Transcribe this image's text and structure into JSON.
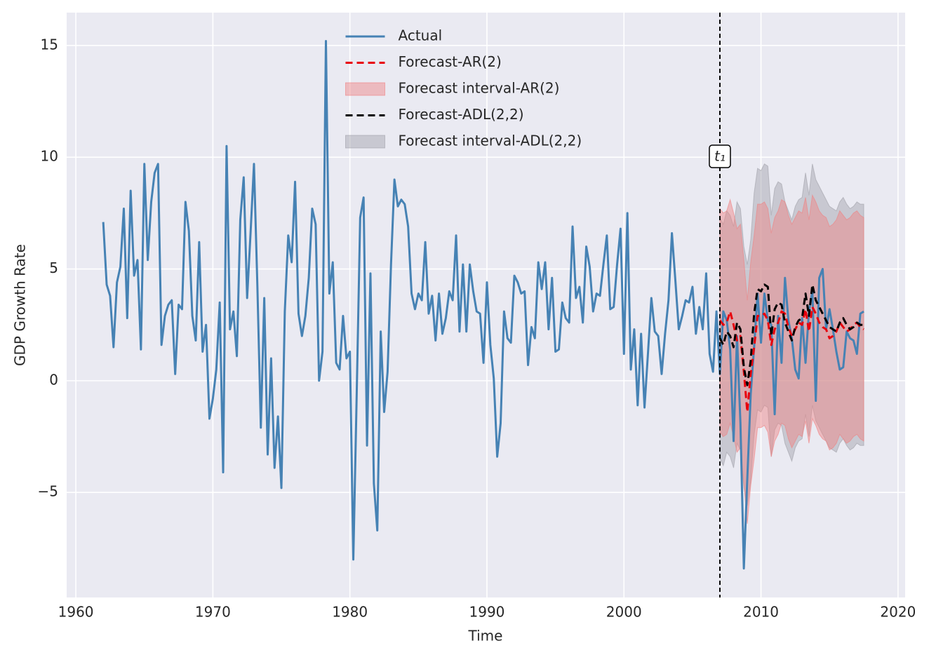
{
  "chart_data": {
    "type": "line",
    "xlabel": "Time",
    "ylabel": "GDP Growth Rate",
    "xlim": [
      1959.33,
      2020.52
    ],
    "ylim": [
      -9.7,
      16.47
    ],
    "xticks": [
      1960,
      1970,
      1980,
      1990,
      2000,
      2010,
      2020
    ],
    "yticks": [
      {
        "value": -5,
        "label": "−5"
      },
      0,
      5,
      10,
      15
    ],
    "grid": true,
    "legend": "upper center",
    "vline": {
      "x": 2007,
      "label": "t₁"
    },
    "series": [
      {
        "name": "Actual",
        "kind": "line",
        "color": "#4682b4",
        "x": [
          1962,
          1962.25,
          1962.5,
          1962.75,
          1963,
          1963.25,
          1963.5,
          1963.75,
          1964,
          1964.25,
          1964.5,
          1964.75,
          1965,
          1965.25,
          1965.5,
          1965.75,
          1966,
          1966.25,
          1966.5,
          1966.75,
          1967,
          1967.25,
          1967.5,
          1967.75,
          1968,
          1968.25,
          1968.5,
          1968.75,
          1969,
          1969.25,
          1969.5,
          1969.75,
          1970,
          1970.25,
          1970.5,
          1970.75,
          1971,
          1971.25,
          1971.5,
          1971.75,
          1972,
          1972.25,
          1972.5,
          1972.75,
          1973,
          1973.25,
          1973.5,
          1973.75,
          1974,
          1974.25,
          1974.5,
          1974.75,
          1975,
          1975.25,
          1975.5,
          1975.75,
          1976,
          1976.25,
          1976.5,
          1976.75,
          1977,
          1977.25,
          1977.5,
          1977.75,
          1978,
          1978.25,
          1978.5,
          1978.75,
          1979,
          1979.25,
          1979.5,
          1979.75,
          1980,
          1980.25,
          1980.5,
          1980.75,
          1981,
          1981.25,
          1981.5,
          1981.75,
          1982,
          1982.25,
          1982.5,
          1982.75,
          1983,
          1983.25,
          1983.5,
          1983.75,
          1984,
          1984.25,
          1984.5,
          1984.75,
          1985,
          1985.25,
          1985.5,
          1985.75,
          1986,
          1986.25,
          1986.5,
          1986.75,
          1987,
          1987.25,
          1987.5,
          1987.75,
          1988,
          1988.25,
          1988.5,
          1988.75,
          1989,
          1989.25,
          1989.5,
          1989.75,
          1990,
          1990.25,
          1990.5,
          1990.75,
          1991,
          1991.25,
          1991.5,
          1991.75,
          1992,
          1992.25,
          1992.5,
          1992.75,
          1993,
          1993.25,
          1993.5,
          1993.75,
          1994,
          1994.25,
          1994.5,
          1994.75,
          1995,
          1995.25,
          1995.5,
          1995.75,
          1996,
          1996.25,
          1996.5,
          1996.75,
          1997,
          1997.25,
          1997.5,
          1997.75,
          1998,
          1998.25,
          1998.5,
          1998.75,
          1999,
          1999.25,
          1999.5,
          1999.75,
          2000,
          2000.25,
          2000.5,
          2000.75,
          2001,
          2001.25,
          2001.5,
          2001.75,
          2002,
          2002.25,
          2002.5,
          2002.75,
          2003,
          2003.25,
          2003.5,
          2003.75,
          2004,
          2004.25,
          2004.5,
          2004.75,
          2005,
          2005.25,
          2005.5,
          2005.75,
          2006,
          2006.25,
          2006.5,
          2006.75,
          2007,
          2007.25,
          2007.5,
          2007.75,
          2008,
          2008.25,
          2008.5,
          2008.75,
          2009,
          2009.25,
          2009.5,
          2009.75,
          2010,
          2010.25,
          2010.5,
          2010.75,
          2011,
          2011.25,
          2011.5,
          2011.75,
          2012,
          2012.25,
          2012.5,
          2012.75,
          2013,
          2013.25,
          2013.5,
          2013.75,
          2014,
          2014.25,
          2014.5,
          2014.75,
          2015,
          2015.25,
          2015.5,
          2015.75,
          2016,
          2016.25,
          2016.5,
          2016.75,
          2017,
          2017.25,
          2017.5
        ],
        "values": [
          7.1,
          4.3,
          3.8,
          1.5,
          4.4,
          5.1,
          7.7,
          2.8,
          8.5,
          4.7,
          5.4,
          1.4,
          9.7,
          5.4,
          8.0,
          9.3,
          9.7,
          1.6,
          2.9,
          3.4,
          3.6,
          0.3,
          3.4,
          3.2,
          8.0,
          6.7,
          2.9,
          1.8,
          6.2,
          1.3,
          2.5,
          -1.7,
          -0.8,
          0.5,
          3.5,
          -4.1,
          10.5,
          2.3,
          3.1,
          1.1,
          7.2,
          9.1,
          3.7,
          6.6,
          9.7,
          4.2,
          -2.1,
          3.7,
          -3.3,
          1.0,
          -3.9,
          -1.6,
          -4.8,
          3.1,
          6.5,
          5.3,
          8.9,
          3.0,
          2.0,
          2.9,
          4.6,
          7.7,
          7.0,
          0.0,
          1.3,
          15.2,
          3.9,
          5.3,
          0.8,
          0.5,
          2.9,
          1.0,
          1.3,
          -8.0,
          -0.5,
          7.3,
          8.2,
          -2.9,
          4.8,
          -4.6,
          -6.7,
          2.2,
          -1.4,
          0.4,
          5.2,
          9.0,
          7.8,
          8.1,
          7.9,
          6.9,
          3.9,
          3.2,
          3.9,
          3.6,
          6.2,
          3.0,
          3.8,
          1.8,
          3.9,
          2.1,
          2.8,
          4.0,
          3.6,
          6.5,
          2.2,
          5.2,
          2.2,
          5.2,
          4.0,
          3.1,
          3.0,
          0.8,
          4.4,
          1.6,
          0.1,
          -3.4,
          -1.9,
          3.1,
          1.9,
          1.7,
          4.7,
          4.4,
          3.9,
          4.0,
          0.7,
          2.4,
          1.9,
          5.3,
          4.1,
          5.3,
          2.3,
          4.6,
          1.3,
          1.4,
          3.5,
          2.8,
          2.6,
          6.9,
          3.7,
          4.2,
          2.6,
          6.0,
          5.1,
          3.1,
          3.9,
          3.8,
          5.2,
          6.5,
          3.2,
          3.3,
          5.2,
          6.8,
          1.2,
          7.5,
          0.5,
          2.3,
          -1.1,
          2.1,
          -1.2,
          1.2,
          3.7,
          2.2,
          2.0,
          0.3,
          2.1,
          3.6,
          6.6,
          4.5,
          2.3,
          2.9,
          3.6,
          3.5,
          4.2,
          2.1,
          3.3,
          2.3,
          4.8,
          1.2,
          0.4,
          3.1,
          0.3,
          3.1,
          2.7,
          1.4,
          -2.7,
          2.0,
          -1.9,
          -8.4,
          -4.4,
          -0.6,
          1.5,
          3.9,
          1.7,
          3.9,
          2.7,
          2.5,
          -1.5,
          2.9,
          0.8,
          4.6,
          2.7,
          1.9,
          0.5,
          0.1,
          2.8,
          0.8,
          3.1,
          4.0,
          -0.9,
          4.6,
          5.0,
          2.3,
          3.2,
          2.3,
          1.3,
          0.5,
          0.6,
          2.2,
          1.9,
          1.8,
          1.2,
          3.0,
          3.1
        ]
      },
      {
        "name": "Forecast-AR(2)",
        "kind": "dashed",
        "color": "#e8000b",
        "x": [
          2007,
          2007.25,
          2007.5,
          2007.75,
          2008,
          2008.25,
          2008.5,
          2008.75,
          2009,
          2009.25,
          2009.5,
          2009.75,
          2010,
          2010.25,
          2010.5,
          2010.75,
          2011,
          2011.25,
          2011.5,
          2011.75,
          2012,
          2012.25,
          2012.5,
          2012.75,
          2013,
          2013.25,
          2013.5,
          2013.75,
          2014,
          2014.25,
          2014.5,
          2014.75,
          2015,
          2015.25,
          2015.5,
          2015.75,
          2016,
          2016.25,
          2016.5,
          2016.75,
          2017,
          2017.25,
          2017.5
        ],
        "values": [
          2.7,
          2.5,
          2.6,
          3.1,
          2.5,
          1.8,
          2.0,
          0.4,
          -1.4,
          0.3,
          1.5,
          2.9,
          2.9,
          3.0,
          2.7,
          1.6,
          2.3,
          2.6,
          3.1,
          3.0,
          2.4,
          2.0,
          2.3,
          2.6,
          2.5,
          3.2,
          2.2,
          3.3,
          3.0,
          2.6,
          2.4,
          2.3,
          1.9,
          2.0,
          2.2,
          2.6,
          2.4,
          2.2,
          2.3,
          2.5,
          2.6,
          2.4,
          2.3
        ]
      },
      {
        "name": "Forecast interval-AR(2)",
        "kind": "band",
        "color": "#f08080",
        "x": [
          2007,
          2007.25,
          2007.5,
          2007.75,
          2008,
          2008.25,
          2008.5,
          2008.75,
          2009,
          2009.25,
          2009.5,
          2009.75,
          2010,
          2010.25,
          2010.5,
          2010.75,
          2011,
          2011.25,
          2011.5,
          2011.75,
          2012,
          2012.25,
          2012.5,
          2012.75,
          2013,
          2013.25,
          2013.5,
          2013.75,
          2014,
          2014.25,
          2014.5,
          2014.75,
          2015,
          2015.25,
          2015.5,
          2015.75,
          2016,
          2016.25,
          2016.5,
          2016.75,
          2017,
          2017.25,
          2017.5
        ],
        "lower": [
          -2.3,
          -2.5,
          -2.4,
          -1.9,
          -2.5,
          -3.2,
          -3.0,
          -4.6,
          -6.4,
          -4.7,
          -3.5,
          -2.1,
          -2.1,
          -2.0,
          -2.3,
          -3.4,
          -2.7,
          -2.4,
          -1.9,
          -2.0,
          -2.6,
          -3.0,
          -2.7,
          -2.4,
          -2.5,
          -1.8,
          -2.8,
          -1.7,
          -2.0,
          -2.4,
          -2.6,
          -2.7,
          -3.1,
          -3.0,
          -2.8,
          -2.4,
          -2.6,
          -2.8,
          -2.7,
          -2.5,
          -2.4,
          -2.6,
          -2.7
        ],
        "upper": [
          7.7,
          7.5,
          7.6,
          8.1,
          7.5,
          6.8,
          7.0,
          5.4,
          3.6,
          5.3,
          6.5,
          7.9,
          7.9,
          8.0,
          7.7,
          6.6,
          7.3,
          7.6,
          8.1,
          8.0,
          7.4,
          7.0,
          7.3,
          7.6,
          7.5,
          8.2,
          7.2,
          8.3,
          8.0,
          7.6,
          7.4,
          7.3,
          6.9,
          7.0,
          7.2,
          7.6,
          7.4,
          7.2,
          7.3,
          7.5,
          7.6,
          7.4,
          7.3
        ]
      },
      {
        "name": "Forecast-ADL(2,2)",
        "kind": "dashed",
        "color": "#000000",
        "x": [
          2007,
          2007.25,
          2007.5,
          2007.75,
          2008,
          2008.25,
          2008.5,
          2008.75,
          2009,
          2009.25,
          2009.5,
          2009.75,
          2010,
          2010.25,
          2010.5,
          2010.75,
          2011,
          2011.25,
          2011.5,
          2011.75,
          2012,
          2012.25,
          2012.5,
          2012.75,
          2013,
          2013.25,
          2013.5,
          2013.75,
          2014,
          2014.25,
          2014.5,
          2014.75,
          2015,
          2015.25,
          2015.5,
          2015.75,
          2016,
          2016.25,
          2016.5,
          2016.75,
          2017,
          2017.25,
          2017.5
        ],
        "values": [
          1.9,
          1.6,
          2.2,
          2.0,
          1.5,
          2.6,
          2.3,
          0.6,
          -0.2,
          0.9,
          3.0,
          4.1,
          4.0,
          4.3,
          4.2,
          2.0,
          3.2,
          3.5,
          3.4,
          2.6,
          2.2,
          1.8,
          2.4,
          2.7,
          2.8,
          3.9,
          2.9,
          4.3,
          3.6,
          3.3,
          3.0,
          2.7,
          2.4,
          2.3,
          2.2,
          2.6,
          2.8,
          2.5,
          2.3,
          2.4,
          2.6,
          2.5,
          2.5
        ]
      },
      {
        "name": "Forecast interval-ADL(2,2)",
        "kind": "band",
        "color": "#a0a0a8",
        "x": [
          2007,
          2007.25,
          2007.5,
          2007.75,
          2008,
          2008.25,
          2008.5,
          2008.75,
          2009,
          2009.25,
          2009.5,
          2009.75,
          2010,
          2010.25,
          2010.5,
          2010.75,
          2011,
          2011.25,
          2011.5,
          2011.75,
          2012,
          2012.25,
          2012.5,
          2012.75,
          2013,
          2013.25,
          2013.5,
          2013.75,
          2014,
          2014.25,
          2014.5,
          2014.75,
          2015,
          2015.25,
          2015.5,
          2015.75,
          2016,
          2016.25,
          2016.5,
          2016.75,
          2017,
          2017.25,
          2017.5
        ],
        "lower": [
          -3.5,
          -3.8,
          -3.2,
          -3.4,
          -3.9,
          -2.8,
          -3.1,
          -4.8,
          -5.6,
          -4.5,
          -2.4,
          -1.3,
          -1.4,
          -1.1,
          -1.2,
          -3.4,
          -2.2,
          -1.9,
          -2.0,
          -2.8,
          -3.2,
          -3.6,
          -3.0,
          -2.7,
          -2.6,
          -1.5,
          -2.5,
          -1.1,
          -1.8,
          -2.1,
          -2.4,
          -2.7,
          -3.0,
          -3.1,
          -3.2,
          -2.8,
          -2.6,
          -2.9,
          -3.1,
          -3.0,
          -2.8,
          -2.9,
          -2.9
        ],
        "upper": [
          7.3,
          7.0,
          7.6,
          7.4,
          6.9,
          8.0,
          7.7,
          6.0,
          5.2,
          6.3,
          8.4,
          9.5,
          9.4,
          9.7,
          9.6,
          7.4,
          8.6,
          8.9,
          8.8,
          8.0,
          7.6,
          7.2,
          7.8,
          8.1,
          8.2,
          9.3,
          8.3,
          9.7,
          9.0,
          8.7,
          8.4,
          8.1,
          7.8,
          7.7,
          7.6,
          8.0,
          8.2,
          7.9,
          7.7,
          7.8,
          8.0,
          7.9,
          7.9
        ]
      }
    ]
  }
}
